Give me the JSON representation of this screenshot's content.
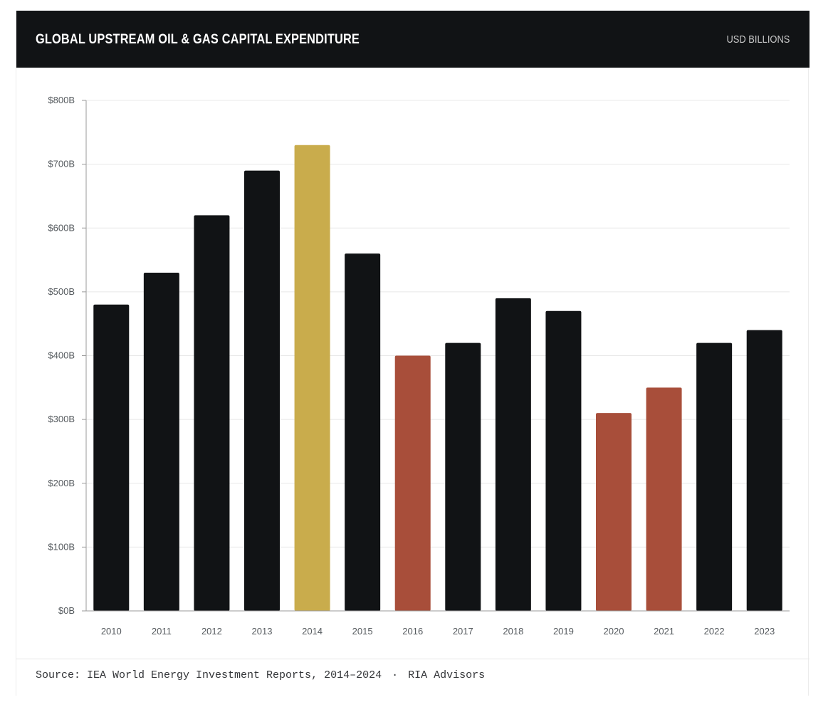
{
  "header": {
    "title": "GLOBAL UPSTREAM OIL & GAS CAPITAL EXPENDITURE",
    "unit": "USD BILLIONS"
  },
  "footer": {
    "source": "Source: IEA World Energy Investment Reports, 2014–2024",
    "separator": "·",
    "credit": "RIA Advisors"
  },
  "colors": {
    "default": "#111315",
    "peak": "#c9ac4c",
    "downturn": "#a84e3a",
    "grid": "#e8e8e8",
    "axis": "#9a9a9a"
  },
  "chart_data": {
    "type": "bar",
    "title": "GLOBAL UPSTREAM OIL & GAS CAPITAL EXPENDITURE",
    "ylabel": "USD BILLIONS",
    "xlabel": "",
    "categories": [
      "2010",
      "2011",
      "2012",
      "2013",
      "2014",
      "2015",
      "2016",
      "2017",
      "2018",
      "2019",
      "2020",
      "2021",
      "2022",
      "2023"
    ],
    "values": [
      480,
      530,
      620,
      690,
      730,
      560,
      400,
      420,
      490,
      470,
      310,
      350,
      420,
      440
    ],
    "bar_highlights": [
      "default",
      "default",
      "default",
      "default",
      "peak",
      "default",
      "downturn",
      "default",
      "default",
      "default",
      "downturn",
      "downturn",
      "default",
      "default"
    ],
    "ylim": [
      0,
      800
    ],
    "y_ticks": [
      0,
      100,
      200,
      300,
      400,
      500,
      600,
      700,
      800
    ],
    "y_tick_labels": [
      "$0B",
      "$100B",
      "$200B",
      "$300B",
      "$400B",
      "$500B",
      "$600B",
      "$700B",
      "$800B"
    ],
    "grid": true,
    "legend": "none"
  }
}
